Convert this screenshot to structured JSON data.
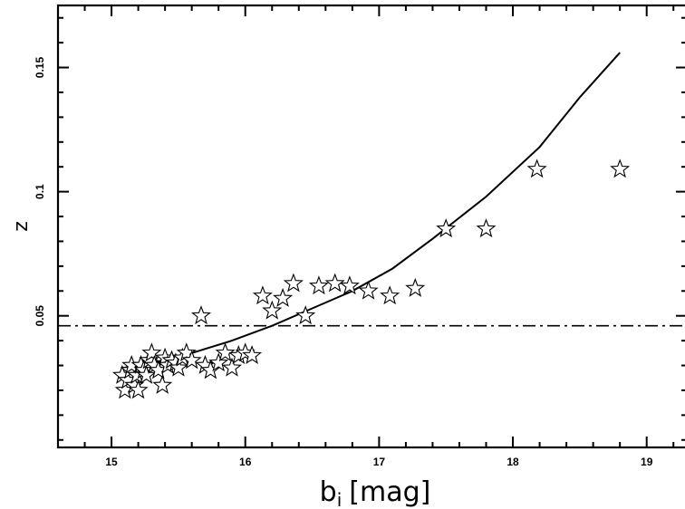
{
  "chart_data": {
    "type": "scatter",
    "xlabel_main": "b",
    "xlabel_sub": "i",
    "xlabel_unit": "[mag]",
    "ylabel": "z",
    "xlim": [
      14.6,
      19.3
    ],
    "ylim": [
      -0.003,
      0.175
    ],
    "x_ticks": [
      15,
      16,
      17,
      18,
      19
    ],
    "y_ticks": [
      0.05,
      0.1,
      0.15
    ],
    "x_tick_labels": [
      "15",
      "16",
      "17",
      "18",
      "19"
    ],
    "y_tick_labels": [
      "0.05",
      "0.1",
      "0.15"
    ],
    "grid": false,
    "reference_line": {
      "style": "dash-dot",
      "y": 0.046
    },
    "series": [
      {
        "type": "scatter",
        "marker": "star",
        "points": [
          [
            15.08,
            0.026
          ],
          [
            15.1,
            0.02
          ],
          [
            15.12,
            0.024
          ],
          [
            15.14,
            0.028
          ],
          [
            15.15,
            0.03
          ],
          [
            15.17,
            0.022
          ],
          [
            15.19,
            0.026
          ],
          [
            15.2,
            0.02
          ],
          [
            15.22,
            0.03
          ],
          [
            15.24,
            0.028
          ],
          [
            15.26,
            0.026
          ],
          [
            15.28,
            0.032
          ],
          [
            15.3,
            0.035
          ],
          [
            15.32,
            0.03
          ],
          [
            15.35,
            0.028
          ],
          [
            15.38,
            0.022
          ],
          [
            15.4,
            0.033
          ],
          [
            15.42,
            0.03
          ],
          [
            15.45,
            0.032
          ],
          [
            15.48,
            0.031
          ],
          [
            15.5,
            0.029
          ],
          [
            15.53,
            0.033
          ],
          [
            15.56,
            0.035
          ],
          [
            15.6,
            0.032
          ],
          [
            15.67,
            0.05
          ],
          [
            15.7,
            0.03
          ],
          [
            15.74,
            0.028
          ],
          [
            15.8,
            0.031
          ],
          [
            15.85,
            0.035
          ],
          [
            15.9,
            0.029
          ],
          [
            15.95,
            0.034
          ],
          [
            16.0,
            0.035
          ],
          [
            16.05,
            0.034
          ],
          [
            16.13,
            0.058
          ],
          [
            16.2,
            0.052
          ],
          [
            16.28,
            0.057
          ],
          [
            16.36,
            0.063
          ],
          [
            16.45,
            0.05
          ],
          [
            16.55,
            0.062
          ],
          [
            16.67,
            0.063
          ],
          [
            16.78,
            0.062
          ],
          [
            16.92,
            0.06
          ],
          [
            17.08,
            0.058
          ],
          [
            17.27,
            0.061
          ],
          [
            17.5,
            0.085
          ],
          [
            17.8,
            0.085
          ],
          [
            18.18,
            0.109
          ],
          [
            18.8,
            0.109
          ]
        ]
      },
      {
        "type": "line",
        "x": [
          15.08,
          15.3,
          15.6,
          15.9,
          16.2,
          16.5,
          16.8,
          17.1,
          17.4,
          17.8,
          18.2,
          18.5,
          18.8
        ],
        "y": [
          0.029,
          0.031,
          0.035,
          0.04,
          0.046,
          0.053,
          0.06,
          0.069,
          0.081,
          0.098,
          0.118,
          0.138,
          0.156
        ]
      }
    ]
  }
}
